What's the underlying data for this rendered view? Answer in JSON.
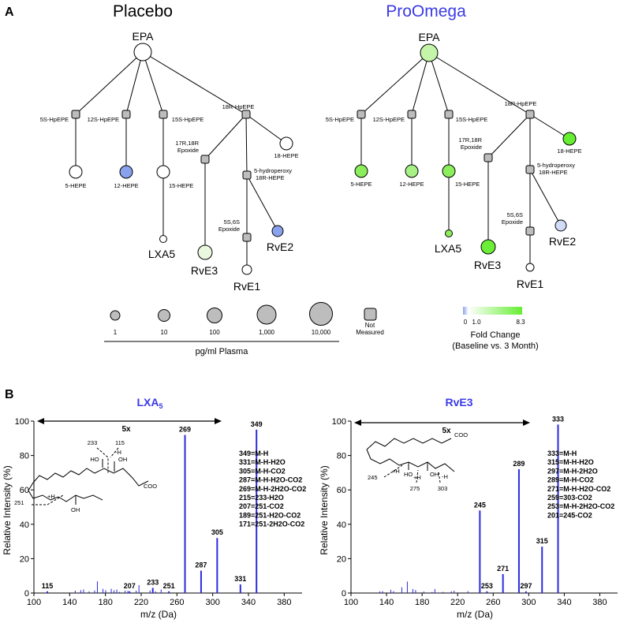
{
  "panel_a": {
    "letter": "A",
    "placebo_title": "Placebo",
    "proomega_title": "ProOmega",
    "placebo": {
      "root": "EPA",
      "nodes": {
        "n5hp": "5S-HpEPE",
        "n12hp": "12S-HpEPE",
        "n15hp": "15S-HpEPE",
        "n18hp": "18R-HpEPE",
        "h5": "5-HEPE",
        "h12": "12-HEPE",
        "h15": "15-HEPE",
        "lxa5": "LXA5",
        "ep1": "17R,18R",
        "ep2": "Epoxide",
        "h18": "18-HEPE",
        "hyd1": "5-hydroperoxy",
        "hyd2": "18R-HEPE",
        "ss1": "5S,6S",
        "ss2": "Epoxide",
        "rve3": "RvE3",
        "rve2": "RvE2",
        "rve1": "RvE1"
      }
    },
    "proomega": {
      "root": "EPA",
      "nodes": {
        "n5hp": "5S-HpEPE",
        "n12hp": "12S-HpEPE",
        "n15hp": "15S-HpEPE",
        "n18hp": "18R-HpEPE",
        "h5": "5-HEPE",
        "h12": "12-HEPE",
        "h15": "15-HEPE",
        "lxa5": "LXA5",
        "ep1": "17R,18R",
        "ep2": "Epoxide",
        "h18": "18-HEPE",
        "hyd1": "5-hydroperoxy",
        "hyd2": "18R-HEPE",
        "ss1": "5S,6S",
        "ss2": "Epoxide",
        "rve3": "RvE3",
        "rve2": "RvE2",
        "rve1": "RvE1"
      }
    },
    "size_legend": {
      "labels": [
        "1",
        "10",
        "100",
        "1,000",
        "10,000"
      ],
      "not_measured_1": "Not",
      "not_measured_2": "Measured",
      "axis": "pg/ml Plasma"
    },
    "color_legend": {
      "ticks": [
        "0",
        "1.0",
        "8.3"
      ],
      "title1": "Fold Change",
      "title2": "(Baseline vs. 3 Month)"
    },
    "colors": {
      "blue": "#8aa2ee",
      "green": "#66ee33",
      "gray": "#bdbdbd"
    }
  },
  "panel_b": {
    "letter": "B",
    "ylabel": "Relative Intensity (%)",
    "xlabel": "m/z (Da)",
    "lxa5": {
      "title_main": "LXA",
      "title_sub": "5",
      "zoom": "5x",
      "frag_labels": {
        "f233": "233",
        "f115": "115",
        "fH": "-H",
        "f251": "251",
        "fpH": "+H",
        "ho1": "HO",
        "oh1": "OH",
        "oh2": "OH",
        "coo": "COO"
      },
      "peak_labels": [
        "115",
        "207",
        "233",
        "251",
        "269",
        "287",
        "305",
        "331",
        "349"
      ],
      "ions": [
        "349=M-H",
        "331=M-H-H2O",
        "305=M-H-CO2",
        "287=M-H-H2O-CO2",
        "269=M-H-2H2O-CO2",
        "215=233-H2O",
        "207=251-CO2",
        "189=251-H2O-CO2",
        "171=251-2H2O-CO2"
      ]
    },
    "rve3": {
      "title": "RvE3",
      "zoom": "5x",
      "frag_labels": {
        "f245": "245",
        "fpH": "+H",
        "f275": "275",
        "f303": "303",
        "fH": "-H",
        "ho": "HO",
        "oh": "OH",
        "fpH2": "+H",
        "coo": "COO"
      },
      "peak_labels": [
        "245",
        "253",
        "271",
        "289",
        "297",
        "315",
        "333"
      ],
      "ions": [
        "333=M-H",
        "315=M-H-H2O",
        "297=M-H-2H2O",
        "289=M-H-CO2",
        "271=M-H-H2O-CO2",
        "259=303-CO2",
        "253=M-H-2H2O-CO2",
        "201=245-CO2"
      ]
    }
  },
  "chart_data": [
    {
      "type": "bar",
      "title": "LXA5",
      "xlabel": "m/z (Da)",
      "ylabel": "Relative Intensity (%)",
      "xlim": [
        100,
        400
      ],
      "ylim": [
        0,
        100
      ],
      "xticks": [
        "100",
        "140",
        "180",
        "220",
        "260",
        "300",
        "340",
        "380"
      ],
      "yticks": [
        "0",
        "20",
        "40",
        "60",
        "80",
        "100"
      ],
      "x": [
        115,
        207,
        233,
        251,
        269,
        287,
        305,
        331,
        349
      ],
      "values": [
        1,
        1,
        3,
        1,
        92,
        13,
        32,
        5,
        95
      ]
    },
    {
      "type": "bar",
      "title": "RvE3",
      "xlabel": "m/z (Da)",
      "ylabel": "Relative Intensity (%)",
      "xlim": [
        100,
        400
      ],
      "ylim": [
        0,
        100
      ],
      "xticks": [
        "100",
        "140",
        "180",
        "220",
        "260",
        "300",
        "340",
        "380"
      ],
      "yticks": [
        "0",
        "20",
        "40",
        "60",
        "80",
        "100"
      ],
      "x": [
        245,
        253,
        271,
        289,
        297,
        315,
        333
      ],
      "values": [
        48,
        1,
        11,
        72,
        1,
        27,
        98
      ]
    }
  ]
}
